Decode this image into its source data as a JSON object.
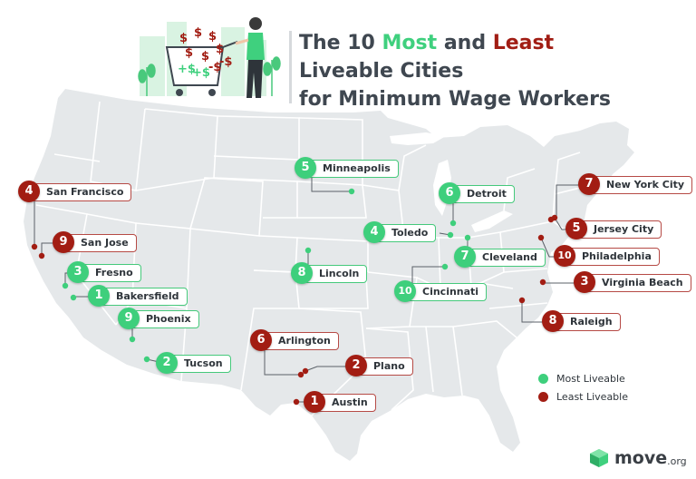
{
  "title": {
    "line1_a": "The 10 ",
    "line1_most": "Most",
    "line1_b": " and ",
    "line1_least": "Least",
    "line2": "Liveable Cities",
    "line3": "for Minimum Wage Workers"
  },
  "colors": {
    "most_liveable": "#3ecf7c",
    "least_liveable": "#a21d13",
    "map_fill": "#e5e8ea",
    "state_border": "#ffffff"
  },
  "illustration": {
    "description_icon": "shopping-cart-money-icon",
    "cart_symbols": [
      "$",
      "$",
      "$",
      "$",
      "$",
      "$",
      "+$",
      "+$",
      "-$",
      "-$"
    ]
  },
  "cities": [
    {
      "rank": "5",
      "name": "Minneapolis",
      "category": "most"
    },
    {
      "rank": "6",
      "name": "Detroit",
      "category": "most"
    },
    {
      "rank": "4",
      "name": "Toledo",
      "category": "most"
    },
    {
      "rank": "7",
      "name": "Cleveland",
      "category": "most"
    },
    {
      "rank": "8",
      "name": "Lincoln",
      "category": "most"
    },
    {
      "rank": "10",
      "name": "Cincinnati",
      "category": "most"
    },
    {
      "rank": "3",
      "name": "Fresno",
      "category": "most"
    },
    {
      "rank": "1",
      "name": "Bakersfield",
      "category": "most"
    },
    {
      "rank": "9",
      "name": "Phoenix",
      "category": "most"
    },
    {
      "rank": "2",
      "name": "Tucson",
      "category": "most"
    },
    {
      "rank": "4",
      "name": "San Francisco",
      "category": "least"
    },
    {
      "rank": "9",
      "name": "San Jose",
      "category": "least"
    },
    {
      "rank": "7",
      "name": "New York City",
      "category": "least"
    },
    {
      "rank": "5",
      "name": "Jersey City",
      "category": "least"
    },
    {
      "rank": "10",
      "name": "Philadelphia",
      "category": "least"
    },
    {
      "rank": "3",
      "name": "Virginia Beach",
      "category": "least"
    },
    {
      "rank": "8",
      "name": "Raleigh",
      "category": "least"
    },
    {
      "rank": "6",
      "name": "Arlington",
      "category": "least"
    },
    {
      "rank": "2",
      "name": "Plano",
      "category": "least"
    },
    {
      "rank": "1",
      "name": "Austin",
      "category": "least"
    }
  ],
  "legend": {
    "most_label": "Most Liveable",
    "least_label": "Least Liveable"
  },
  "brand": {
    "name": "move",
    "tld": ".org",
    "icon": "move-cube-logo-icon"
  }
}
